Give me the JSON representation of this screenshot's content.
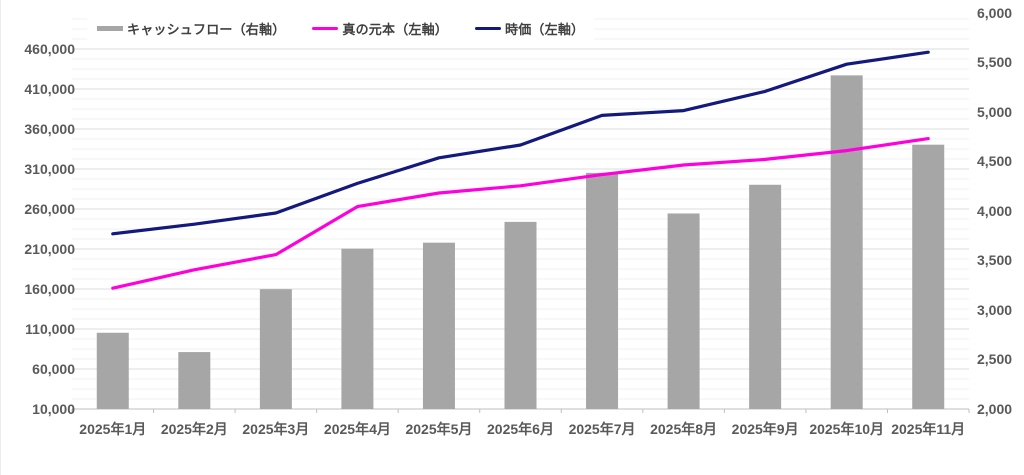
{
  "chart": {
    "background": "#ffffff",
    "legend_items": [
      "キャッシュフロー（右軸）",
      "真の元本（左軸）",
      "時価（左軸）"
    ]
  },
  "chart_data": {
    "type": "combo",
    "title": "",
    "categories": [
      "2025年1月",
      "2025年2月",
      "2025年3月",
      "2025年4月",
      "2025年5月",
      "2025年6月",
      "2025年7月",
      "2025年8月",
      "2025年9月",
      "2025年10月",
      "2025年11月"
    ],
    "series": [
      {
        "id": "cashflow",
        "name": "キャッシュフロー（右軸）",
        "type": "bar",
        "axis": "right",
        "color": "#a6a6a6",
        "values": [
          2770,
          2575,
          3210,
          3620,
          3680,
          3890,
          4385,
          3975,
          4265,
          5370,
          4670
        ]
      },
      {
        "id": "principal",
        "name": "真の元本（左軸）",
        "type": "line",
        "axis": "left",
        "color": "#ff00dd",
        "values": [
          161000,
          184000,
          203000,
          263000,
          280000,
          289000,
          303000,
          315000,
          322000,
          333000,
          348000
        ]
      },
      {
        "id": "market_value",
        "name": "時価（左軸）",
        "type": "line",
        "axis": "left",
        "color": "#13197d",
        "values": [
          229000,
          241000,
          255000,
          292000,
          324000,
          340000,
          377000,
          383000,
          407000,
          441000,
          456000
        ]
      }
    ],
    "left_axis": {
      "min": 10000,
      "max": 460000,
      "step": 50000,
      "plot_max": 505000,
      "tick_labels": [
        "10,000",
        "60,000",
        "110,000",
        "160,000",
        "210,000",
        "260,000",
        "310,000",
        "360,000",
        "410,000",
        "460,000"
      ]
    },
    "right_axis": {
      "min": 2000,
      "max": 6000,
      "step": 500,
      "tick_labels": [
        "2,000",
        "2,500",
        "3,000",
        "3,500",
        "4,000",
        "4,500",
        "5,000",
        "5,500",
        "6,000"
      ]
    },
    "grid": {
      "major_color": "#dcdcdc",
      "minor_color": "#f2f2f2",
      "minor_subdivisions": 4,
      "axis_line_color": "#bfbfbf",
      "label_color": "#595959"
    },
    "legend_position": "top-left"
  }
}
